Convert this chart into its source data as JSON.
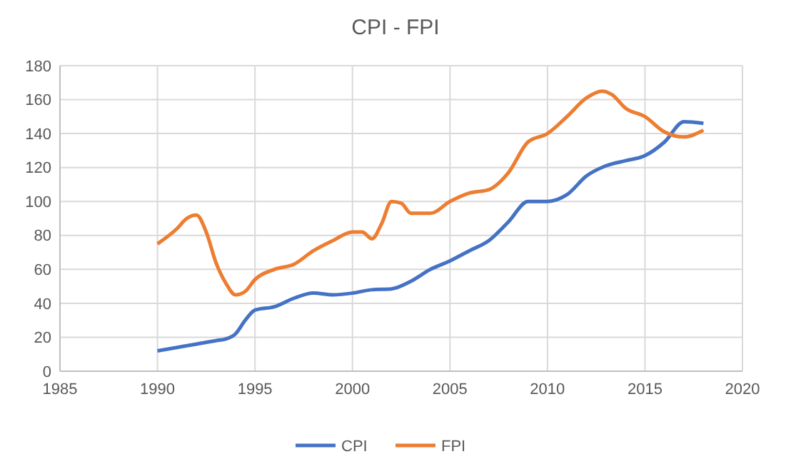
{
  "chart_data": {
    "type": "line",
    "title": "CPI - FPI",
    "xlim": [
      1985,
      2020
    ],
    "xticks": [
      1985,
      1990,
      1995,
      2000,
      2005,
      2010,
      2015,
      2020
    ],
    "ylim": [
      0,
      180
    ],
    "yticks": [
      0,
      20,
      40,
      60,
      80,
      100,
      120,
      140,
      160,
      180
    ],
    "grid": true,
    "legend": "bottom",
    "marker": "none",
    "line_style": "solid",
    "series": [
      {
        "name": "CPI",
        "color": "#4472c4",
        "x": [
          1990,
          1991,
          1992,
          1993,
          1993.5,
          1994,
          1994.5,
          1995,
          1996,
          1997,
          1998,
          1999,
          2000,
          2001,
          2002,
          2003,
          2004,
          2005,
          2006,
          2007,
          2008,
          2009,
          2010,
          2011,
          2012,
          2013,
          2014,
          2015,
          2016,
          2017,
          2018
        ],
        "values": [
          12,
          14,
          16,
          18,
          19,
          22,
          30,
          36,
          38,
          43,
          46,
          45,
          46,
          48,
          48.5,
          53,
          60,
          65,
          71,
          77,
          88,
          100,
          100,
          104,
          115,
          121,
          124,
          127,
          135,
          147,
          146
        ]
      },
      {
        "name": "FPI",
        "color": "#ed7d31",
        "x": [
          1990,
          1991,
          1991.5,
          1992,
          1992.5,
          1993,
          1993.5,
          1994,
          1994.5,
          1995,
          1996,
          1997,
          1998,
          1999,
          2000,
          2000.5,
          2001,
          2001.5,
          2002,
          2002.5,
          2003,
          2004,
          2005,
          2006,
          2007,
          2008,
          2009,
          2010,
          2011,
          2012,
          2012.8,
          2013.3,
          2014,
          2015,
          2016,
          2017,
          2018
        ],
        "values": [
          75,
          84,
          90,
          92,
          82,
          64,
          52,
          45,
          47,
          54,
          60,
          63,
          71,
          77,
          82,
          82,
          78,
          87,
          100,
          99,
          93,
          93,
          100,
          105,
          107,
          117,
          135,
          140,
          150,
          161,
          165,
          163,
          155,
          150,
          141,
          138,
          142
        ]
      }
    ]
  }
}
